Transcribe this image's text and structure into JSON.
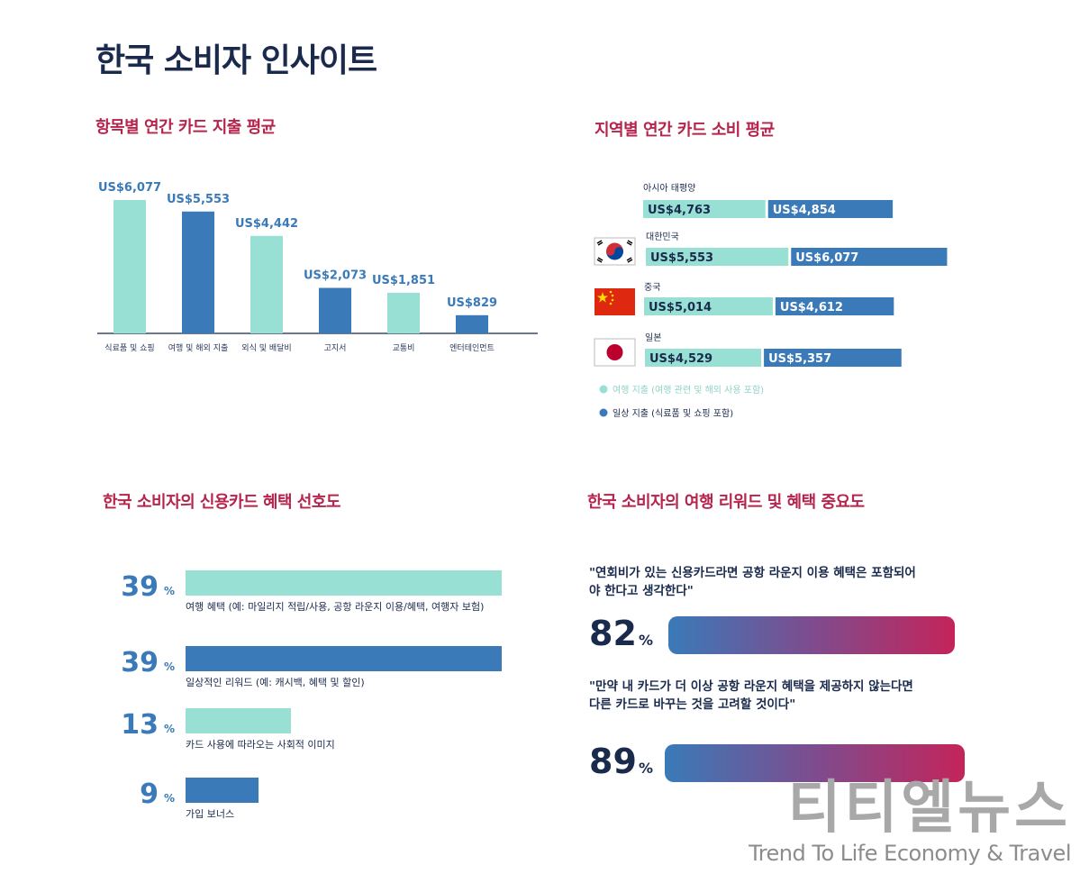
{
  "page": {
    "title": "한국 소비자 인사이트",
    "watermark_main": "티티엘뉴스",
    "watermark_sub": "Trend To Life Economy & Travel"
  },
  "colors": {
    "mint": "#99e0d4",
    "blue": "#3a7ab8",
    "title_navy": "#1a2a4c",
    "section_red": "#b5244c",
    "gradient_start": "#3a7ab8",
    "gradient_end": "#c4245a"
  },
  "sections": {
    "category_title": "항목별 연간 카드 지출 평균",
    "region_title": "지역별 연간 카드 소비 평균",
    "preference_title": "한국 소비자의 신용카드 혜택 선호도",
    "importance_title": "한국 소비자의 여행 리워드 및 혜택 중요도"
  },
  "chart_data": [
    {
      "type": "bar",
      "categories": [
        "식료품 및 쇼핑",
        "여행 및 해외 지출",
        "외식 및 배달비",
        "고지서",
        "교통비",
        "엔터테인먼트"
      ],
      "values": [
        6077,
        5553,
        4442,
        2073,
        1851,
        829
      ],
      "value_labels": [
        "US$6,077",
        "US$5,553",
        "US$4,442",
        "US$2,073",
        "US$1,851",
        "US$829"
      ],
      "bar_colors": [
        "#99e0d4",
        "#3a7ab8",
        "#99e0d4",
        "#3a7ab8",
        "#99e0d4",
        "#3a7ab8"
      ],
      "ylim": [
        0,
        7000
      ]
    },
    {
      "type": "bar",
      "orientation": "horizontal-stacked",
      "categories": [
        "아시아 태평양",
        "대한민국",
        "중국",
        "일본"
      ],
      "series": [
        {
          "name": "여행 지출 (여행 관련 및 해외 사용 포함)",
          "color": "#99e0d4",
          "values": [
            4763,
            5553,
            5014,
            4529
          ],
          "labels": [
            "US$4,763",
            "US$5,553",
            "US$5,014",
            "US$4,529"
          ]
        },
        {
          "name": "일상 지출 (식료품 및 쇼핑 포함)",
          "color": "#3a7ab8",
          "values": [
            4854,
            6077,
            4612,
            5357
          ],
          "labels": [
            "US$4,854",
            "US$6,077",
            "US$4,612",
            "US$5,357"
          ]
        }
      ],
      "legend_position": "bottom-left"
    },
    {
      "type": "bar",
      "orientation": "horizontal",
      "categories": [
        "여행 혜택 (예: 마일리지 적립/사용, 공항 라운지 이용/혜택, 여행자 보험)",
        "일상적인 리워드 (예: 캐시백, 혜택 및 할인)",
        "카드 사용에 따라오는 사회적 이미지",
        "가입 보너스"
      ],
      "values": [
        39,
        39,
        13,
        9
      ],
      "value_labels": [
        "39",
        "39",
        "13",
        "9"
      ],
      "unit": "%",
      "bar_colors": [
        "#99e0d4",
        "#3a7ab8",
        "#99e0d4",
        "#3a7ab8"
      ]
    },
    {
      "type": "bar",
      "orientation": "horizontal",
      "categories": [
        "\"연회비가 있는 신용카드라면 공항 라운지 이용 혜택은 포함되어 야 한다고 생각한다\"",
        "\"만약 내 카드가 더 이상 공항 라운지 혜택을 제공하지 않는다면 다른 카드로 바꾸는 것을 고려할 것이다\""
      ],
      "values": [
        82,
        89
      ],
      "value_labels": [
        "82",
        "89"
      ],
      "unit": "%"
    }
  ]
}
